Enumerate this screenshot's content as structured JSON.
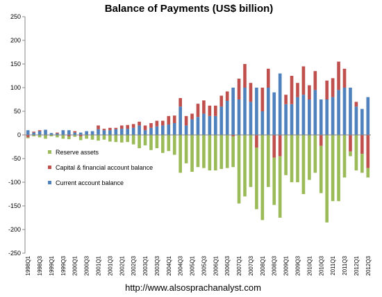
{
  "chart_data": {
    "type": "bar",
    "title": "Balance of Payments (US$ billion)",
    "xlabel": "",
    "ylabel": "",
    "ylim": [
      -250,
      250
    ],
    "yticks": [
      -250,
      -200,
      -150,
      -100,
      -50,
      0,
      50,
      100,
      150,
      200,
      250
    ],
    "grid": false,
    "legend_position": "inside-lower-left",
    "stacked": true,
    "categories": [
      "1998Q1",
      "1998Q2",
      "1998Q3",
      "1998Q4",
      "1999Q1",
      "1999Q2",
      "1999Q3",
      "1999Q4",
      "2000Q1",
      "2000Q2",
      "2000Q3",
      "2000Q4",
      "2001Q1",
      "2001Q2",
      "2001Q3",
      "2001Q4",
      "2002Q1",
      "2002Q2",
      "2002Q3",
      "2002Q4",
      "2003Q1",
      "2003Q2",
      "2003Q3",
      "2003Q4",
      "2004Q1",
      "2004Q2",
      "2004Q3",
      "2004Q4",
      "2005Q1",
      "2005Q2",
      "2005Q3",
      "2005Q4",
      "2006Q1",
      "2006Q2",
      "2006Q3",
      "2006Q4",
      "2007Q1",
      "2007Q2",
      "2007Q3",
      "2007Q4",
      "2008Q1",
      "2008Q2",
      "2008Q3",
      "2008Q4",
      "2009Q1",
      "2009Q2",
      "2009Q3",
      "2009Q4",
      "2010Q1",
      "2010Q2",
      "2010Q3",
      "2010Q4",
      "2011Q1",
      "2011Q2",
      "2011Q3",
      "2011Q4",
      "2012Q1",
      "2012Q2",
      "2012Q3"
    ],
    "xtick_labels": [
      "1998Q1",
      "1998Q3",
      "1999Q1",
      "1999Q3",
      "2000Q1",
      "2000Q3",
      "2001Q1",
      "2001Q3",
      "2002Q1",
      "2002Q3",
      "2003Q1",
      "2003Q3",
      "2004Q1",
      "2004Q3",
      "2005Q1",
      "2005Q3",
      "2006Q1",
      "2006Q3",
      "2007Q1",
      "2007Q3",
      "2008Q1",
      "2008Q3",
      "2009Q1",
      "2009Q3",
      "2010Q1",
      "2010Q3",
      "2011Q1",
      "2011Q3",
      "2012Q1",
      "2012Q3"
    ],
    "series": [
      {
        "name": "Reserve assets",
        "color": "#9BBB59",
        "values": [
          -2,
          -3,
          -5,
          -8,
          -3,
          -5,
          -8,
          -6,
          -4,
          -8,
          -8,
          -10,
          -12,
          -10,
          -14,
          -15,
          -16,
          -15,
          -20,
          -28,
          -22,
          -32,
          -28,
          -38,
          -34,
          -42,
          -80,
          -60,
          -78,
          -68,
          -70,
          -75,
          -75,
          -72,
          -70,
          -65,
          -145,
          -130,
          -110,
          -130,
          -180,
          -110,
          -100,
          -130,
          -85,
          -100,
          -100,
          -125,
          -95,
          -80,
          -100,
          -185,
          -140,
          -140,
          -90,
          -10,
          -75,
          -40,
          -20
        ]
      },
      {
        "name": "Capital & financial account balance",
        "color": "#C0504D",
        "values": [
          -5,
          2,
          2,
          0,
          0,
          2,
          0,
          -3,
          3,
          -3,
          0,
          0,
          8,
          3,
          5,
          3,
          7,
          8,
          8,
          8,
          10,
          10,
          12,
          10,
          18,
          16,
          18,
          20,
          12,
          28,
          28,
          22,
          22,
          23,
          20,
          -3,
          44,
          50,
          40,
          -27,
          50,
          40,
          -48,
          -45,
          20,
          60,
          30,
          60,
          30,
          40,
          -23,
          40,
          40,
          60,
          40,
          -35,
          10,
          -40,
          -70
        ]
      },
      {
        "name": "Current account balance",
        "color": "#4F81BD",
        "values": [
          10,
          5,
          8,
          11,
          4,
          3,
          10,
          10,
          5,
          5,
          8,
          8,
          12,
          10,
          10,
          12,
          13,
          13,
          15,
          20,
          10,
          15,
          18,
          20,
          22,
          25,
          60,
          20,
          33,
          38,
          45,
          40,
          40,
          60,
          72,
          100,
          75,
          100,
          70,
          100,
          50,
          100,
          90,
          130,
          65,
          65,
          80,
          85,
          75,
          95,
          75,
          75,
          80,
          95,
          100,
          100,
          60,
          55,
          80
        ]
      }
    ],
    "source_text": "http://www.alsosprachanalyst.com"
  },
  "colors": {
    "reserve": "#9BBB59",
    "capital": "#C0504D",
    "current": "#4F81BD",
    "axis": "#868686"
  }
}
